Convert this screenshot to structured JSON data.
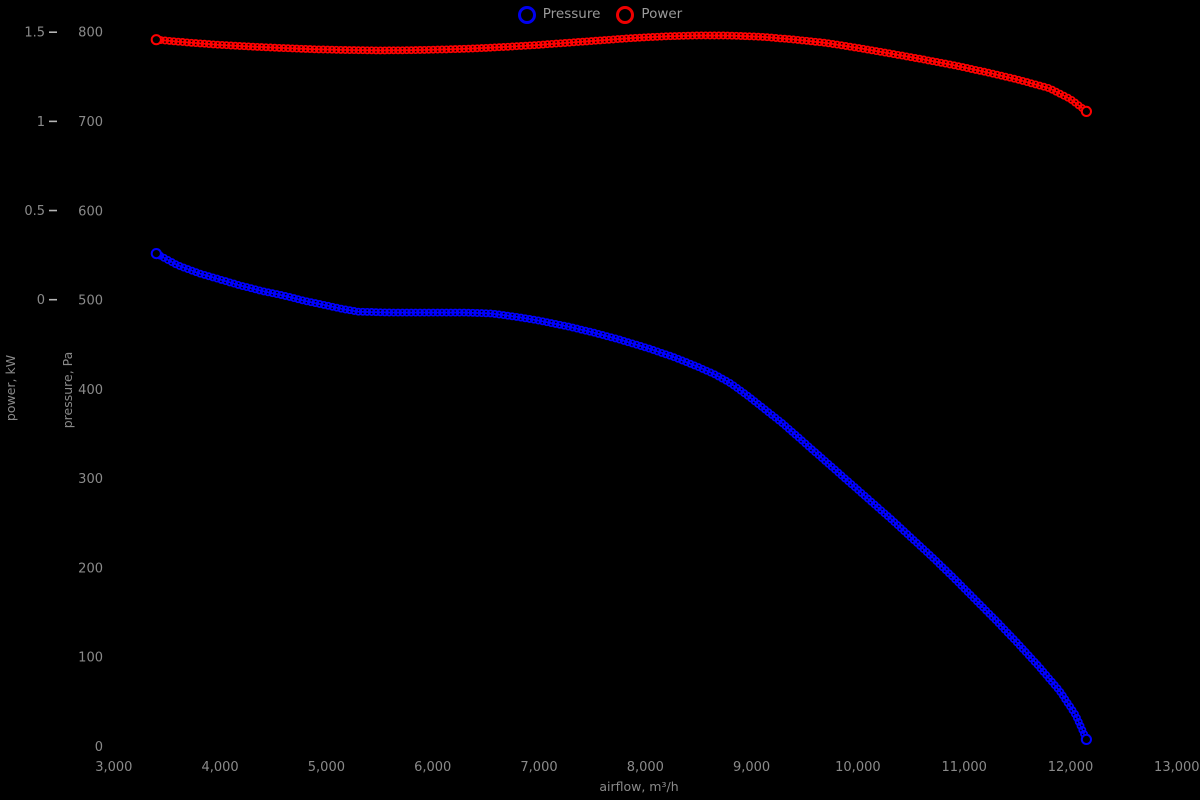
{
  "canvas": {
    "background": "#000000",
    "label_color": "#8a8a8a",
    "tick_dash_color": "#b5b5b5",
    "legend_text_color": "#9a9a9a"
  },
  "legend": {
    "position": "top-center",
    "items": [
      {
        "label": "Pressure",
        "color": "#0000ee"
      },
      {
        "label": "Power",
        "color": "#ee0000"
      }
    ]
  },
  "chart_data": {
    "type": "line",
    "title": "",
    "xlabel": "airflow, m³/h",
    "grid": false,
    "legend_position": "top-center",
    "x_axis": {
      "min": 3000,
      "max": 13000,
      "tick_values": [
        3000,
        4000,
        5000,
        6000,
        7000,
        8000,
        9000,
        10000,
        11000,
        12000,
        13000
      ],
      "tick_labels": [
        "3,000",
        "4,000",
        "5,000",
        "6,000",
        "7,000",
        "8,000",
        "9,000",
        "10,000",
        "11,000",
        "12,000",
        "13,000"
      ]
    },
    "y_axes": [
      {
        "id": "power",
        "label": "power, kW",
        "position": "outer-left",
        "min": 0,
        "max": 1.5,
        "tick_values": [
          0,
          0.5,
          1,
          1.5
        ],
        "tick_labels": [
          "0",
          "0.5",
          "1",
          "1.5"
        ],
        "has_tick_dashes": true
      },
      {
        "id": "pressure",
        "label": "pressure, Pa",
        "position": "inner-left",
        "min": 0,
        "max": 800,
        "tick_values": [
          0,
          100,
          200,
          300,
          400,
          500,
          600,
          700,
          800
        ],
        "tick_labels": [
          "0",
          "100",
          "200",
          "300",
          "400",
          "500",
          "600",
          "700",
          "800"
        ],
        "has_tick_dashes": false
      }
    ],
    "series": [
      {
        "name": "Pressure",
        "axis": "pressure",
        "color": "#0000ff",
        "marker": "open-circle-chain",
        "points": [
          [
            3400,
            552
          ],
          [
            3600,
            539
          ],
          [
            3800,
            530
          ],
          [
            4000,
            523
          ],
          [
            4200,
            516
          ],
          [
            4400,
            510
          ],
          [
            4600,
            505
          ],
          [
            4800,
            499
          ],
          [
            5000,
            494
          ],
          [
            5150,
            490
          ],
          [
            5300,
            487
          ],
          [
            5600,
            486
          ],
          [
            6000,
            486
          ],
          [
            6300,
            486
          ],
          [
            6550,
            485
          ],
          [
            6800,
            481
          ],
          [
            7000,
            477
          ],
          [
            7250,
            471
          ],
          [
            7500,
            464
          ],
          [
            7750,
            456
          ],
          [
            8000,
            447
          ],
          [
            8250,
            437
          ],
          [
            8500,
            425
          ],
          [
            8650,
            417
          ],
          [
            8800,
            407
          ],
          [
            8950,
            394
          ],
          [
            9100,
            380
          ],
          [
            9300,
            361
          ],
          [
            9500,
            340
          ],
          [
            9700,
            319
          ],
          [
            9900,
            298
          ],
          [
            10100,
            277
          ],
          [
            10300,
            256
          ],
          [
            10500,
            234
          ],
          [
            10700,
            212
          ],
          [
            10900,
            189
          ],
          [
            11100,
            165
          ],
          [
            11300,
            141
          ],
          [
            11500,
            116
          ],
          [
            11700,
            90
          ],
          [
            11900,
            62
          ],
          [
            12050,
            35
          ],
          [
            12150,
            8
          ]
        ]
      },
      {
        "name": "Power",
        "axis": "power",
        "color": "#ff0000",
        "marker": "open-circle-chain",
        "points": [
          [
            3400,
            1.458
          ],
          [
            3700,
            1.442
          ],
          [
            4000,
            1.429
          ],
          [
            4300,
            1.419
          ],
          [
            4600,
            1.411
          ],
          [
            4900,
            1.404
          ],
          [
            5200,
            1.4
          ],
          [
            5500,
            1.398
          ],
          [
            5800,
            1.399
          ],
          [
            6100,
            1.403
          ],
          [
            6400,
            1.409
          ],
          [
            6700,
            1.418
          ],
          [
            7000,
            1.429
          ],
          [
            7300,
            1.442
          ],
          [
            7600,
            1.455
          ],
          [
            7900,
            1.468
          ],
          [
            8200,
            1.477
          ],
          [
            8500,
            1.482
          ],
          [
            8800,
            1.481
          ],
          [
            9100,
            1.474
          ],
          [
            9400,
            1.459
          ],
          [
            9700,
            1.44
          ],
          [
            10000,
            1.412
          ],
          [
            10300,
            1.381
          ],
          [
            10600,
            1.349
          ],
          [
            10900,
            1.315
          ],
          [
            11200,
            1.277
          ],
          [
            11500,
            1.235
          ],
          [
            11800,
            1.186
          ],
          [
            12000,
            1.125
          ],
          [
            12150,
            1.056
          ]
        ]
      }
    ]
  }
}
